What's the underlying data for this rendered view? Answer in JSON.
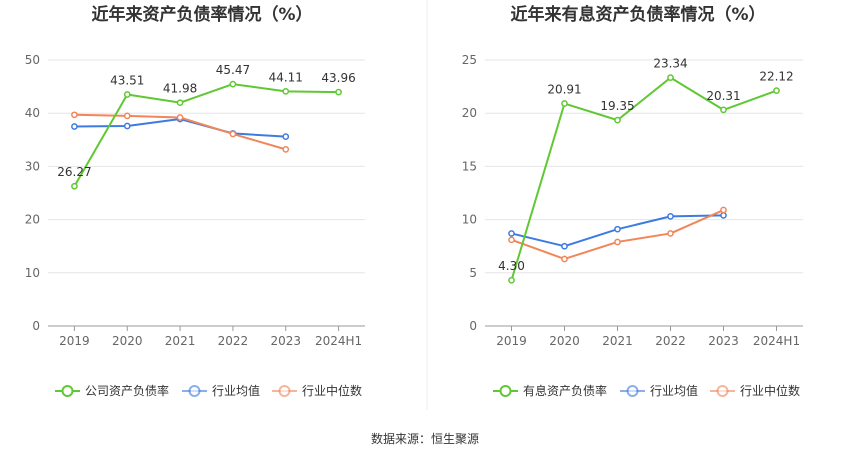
{
  "colors": {
    "green": "#5fc833",
    "blue": "#3d7be0",
    "orange": "#f0865a",
    "grid": "#e6e6e6",
    "axis": "#999999",
    "divider": "#eeeeee"
  },
  "source": "数据来源：恒生聚源",
  "chart_data": [
    {
      "type": "line",
      "title": "近年来资产负债率情况（%）",
      "categories": [
        "2019",
        "2020",
        "2021",
        "2022",
        "2023",
        "2024H1"
      ],
      "ylim": [
        0,
        50
      ],
      "yticks": [
        0,
        10,
        20,
        30,
        40,
        50
      ],
      "grid": true,
      "legend_position": "bottom",
      "series": [
        {
          "name": "公司资产负债率",
          "color": "#5fc833",
          "labeled": true,
          "values": [
            26.27,
            43.51,
            41.98,
            45.47,
            44.11,
            43.96
          ],
          "labels": [
            "26.27",
            "43.51",
            "41.98",
            "45.47",
            "44.11",
            "43.96"
          ]
        },
        {
          "name": "行业均值",
          "color": "#3d7be0",
          "labeled": false,
          "values": [
            37.5,
            37.6,
            38.9,
            36.2,
            35.6,
            null
          ]
        },
        {
          "name": "行业中位数",
          "color": "#f0865a",
          "labeled": false,
          "values": [
            39.7,
            39.5,
            39.2,
            36.1,
            33.2,
            null
          ]
        }
      ]
    },
    {
      "type": "line",
      "title": "近年来有息资产负债率情况（%）",
      "categories": [
        "2019",
        "2020",
        "2021",
        "2022",
        "2023",
        "2024H1"
      ],
      "ylim": [
        0,
        25
      ],
      "yticks": [
        0,
        5,
        10,
        15,
        20,
        25
      ],
      "grid": true,
      "legend_position": "bottom",
      "series": [
        {
          "name": "有息资产负债率",
          "color": "#5fc833",
          "labeled": true,
          "values": [
            4.3,
            20.91,
            19.35,
            23.34,
            20.31,
            22.12
          ],
          "labels": [
            "4.30",
            "20.91",
            "19.35",
            "23.34",
            "20.31",
            "22.12"
          ]
        },
        {
          "name": "行业均值",
          "color": "#3d7be0",
          "labeled": false,
          "values": [
            8.7,
            7.5,
            9.1,
            10.3,
            10.4,
            null
          ]
        },
        {
          "name": "行业中位数",
          "color": "#f0865a",
          "labeled": false,
          "values": [
            8.1,
            6.3,
            7.9,
            8.7,
            10.9,
            null
          ]
        }
      ]
    }
  ]
}
